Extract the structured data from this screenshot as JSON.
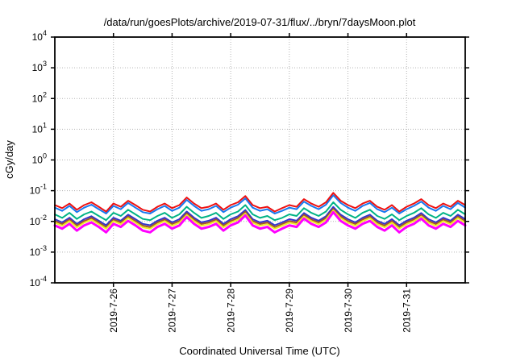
{
  "chart_data": {
    "type": "line",
    "title": "/data/run/goesPlots/archive/2019-07-31/flux/../bryn/7daysMoon.plot",
    "xlabel": "Coordinated Universal Time (UTC)",
    "ylabel": "cGy/day",
    "y_scale": "log10",
    "ylim": [
      0.0001,
      10000
    ],
    "ytick_exponents": [
      4,
      3,
      2,
      1,
      0,
      -1,
      -2,
      -3,
      -4
    ],
    "x_axis": {
      "start_hour": 0,
      "end_hour": 168,
      "step_hours": 3
    },
    "xticks": [
      {
        "hour": 24,
        "label": "2019-7-26"
      },
      {
        "hour": 48,
        "label": "2019-7-27"
      },
      {
        "hour": 72,
        "label": "2019-7-28"
      },
      {
        "hour": 96,
        "label": "2019-7-29"
      },
      {
        "hour": 120,
        "label": "2019-7-30"
      },
      {
        "hour": 144,
        "label": "2019-7-31"
      }
    ],
    "grid": {
      "horizontal": true,
      "vertical": true,
      "color": "#b3b3b3",
      "style": "dotted"
    },
    "axis_color": "#000000",
    "background": "#ffffff",
    "legend": "none",
    "series": [
      {
        "name": "navy-blue",
        "color": "#3333cc",
        "width": 2,
        "values": [
          0.0118,
          0.0093,
          0.0132,
          0.0083,
          0.0118,
          0.0148,
          0.0105,
          0.0075,
          0.0132,
          0.0105,
          0.0166,
          0.0118,
          0.0083,
          0.0075,
          0.0105,
          0.0132,
          0.0093,
          0.0118,
          0.021,
          0.0132,
          0.0093,
          0.0105,
          0.0132,
          0.0083,
          0.0118,
          0.0148,
          0.0235,
          0.0118,
          0.0093,
          0.0105,
          0.0075,
          0.0093,
          0.0118,
          0.0105,
          0.0187,
          0.0132,
          0.0105,
          0.0148,
          0.0296,
          0.0166,
          0.0118,
          0.0093,
          0.0132,
          0.0166,
          0.0105,
          0.0083,
          0.0118,
          0.0075,
          0.0105,
          0.0132,
          0.0187,
          0.0118,
          0.0093,
          0.0132,
          0.0105,
          0.0166,
          0.0118
        ]
      },
      {
        "name": "brown",
        "color": "#a0522d",
        "width": 2,
        "values": [
          0.0103,
          0.0082,
          0.0116,
          0.0073,
          0.0103,
          0.013,
          0.0092,
          0.0065,
          0.0116,
          0.0092,
          0.0145,
          0.0103,
          0.0073,
          0.0065,
          0.0092,
          0.0116,
          0.0082,
          0.0103,
          0.0184,
          0.0116,
          0.0082,
          0.0092,
          0.0116,
          0.0073,
          0.0103,
          0.013,
          0.0206,
          0.0103,
          0.0082,
          0.0092,
          0.0065,
          0.0082,
          0.0103,
          0.0092,
          0.0164,
          0.0116,
          0.0092,
          0.013,
          0.0259,
          0.0145,
          0.0103,
          0.0082,
          0.0116,
          0.0145,
          0.0092,
          0.0073,
          0.0103,
          0.0065,
          0.0092,
          0.0116,
          0.0164,
          0.0103,
          0.0082,
          0.0116,
          0.0092,
          0.0145,
          0.0103
        ]
      },
      {
        "name": "yellow",
        "color": "#eeee22",
        "width": 2,
        "values": [
          0.0091,
          0.0072,
          0.0102,
          0.0064,
          0.0091,
          0.0114,
          0.0081,
          0.0058,
          0.0102,
          0.0081,
          0.0128,
          0.0091,
          0.0064,
          0.0058,
          0.0081,
          0.0102,
          0.0072,
          0.0091,
          0.0162,
          0.0102,
          0.0072,
          0.0081,
          0.0102,
          0.0064,
          0.0091,
          0.0114,
          0.0181,
          0.0091,
          0.0072,
          0.0081,
          0.0058,
          0.0072,
          0.0091,
          0.0081,
          0.0144,
          0.0102,
          0.0081,
          0.0114,
          0.0228,
          0.0128,
          0.0091,
          0.0072,
          0.0102,
          0.0128,
          0.0081,
          0.0064,
          0.0091,
          0.0058,
          0.0081,
          0.0102,
          0.0144,
          0.0091,
          0.0072,
          0.0102,
          0.0081,
          0.0128,
          0.0091
        ]
      },
      {
        "name": "teal-green",
        "color": "#00b386",
        "width": 2,
        "values": [
          0.017,
          0.013,
          0.019,
          0.012,
          0.017,
          0.021,
          0.015,
          0.011,
          0.019,
          0.015,
          0.024,
          0.017,
          0.012,
          0.011,
          0.015,
          0.019,
          0.013,
          0.017,
          0.03,
          0.019,
          0.013,
          0.015,
          0.019,
          0.012,
          0.017,
          0.021,
          0.034,
          0.017,
          0.013,
          0.015,
          0.011,
          0.013,
          0.017,
          0.015,
          0.027,
          0.019,
          0.015,
          0.021,
          0.042,
          0.024,
          0.017,
          0.013,
          0.019,
          0.024,
          0.015,
          0.012,
          0.017,
          0.011,
          0.015,
          0.019,
          0.027,
          0.017,
          0.013,
          0.019,
          0.015,
          0.024,
          0.017
        ]
      },
      {
        "name": "light-blue",
        "color": "#1878f0",
        "width": 2,
        "values": [
          0.028,
          0.022,
          0.032,
          0.02,
          0.028,
          0.035,
          0.025,
          0.018,
          0.032,
          0.025,
          0.04,
          0.028,
          0.02,
          0.018,
          0.025,
          0.032,
          0.022,
          0.028,
          0.05,
          0.032,
          0.022,
          0.025,
          0.032,
          0.02,
          0.028,
          0.035,
          0.056,
          0.028,
          0.022,
          0.025,
          0.018,
          0.022,
          0.028,
          0.025,
          0.044,
          0.032,
          0.025,
          0.035,
          0.071,
          0.04,
          0.028,
          0.022,
          0.032,
          0.04,
          0.025,
          0.02,
          0.028,
          0.018,
          0.025,
          0.032,
          0.044,
          0.028,
          0.022,
          0.032,
          0.025,
          0.04,
          0.028
        ]
      },
      {
        "name": "red",
        "color": "#ee1111",
        "width": 2,
        "values": [
          0.034,
          0.027,
          0.038,
          0.024,
          0.034,
          0.042,
          0.03,
          0.021,
          0.038,
          0.03,
          0.047,
          0.034,
          0.024,
          0.021,
          0.03,
          0.038,
          0.027,
          0.034,
          0.06,
          0.038,
          0.027,
          0.03,
          0.038,
          0.024,
          0.034,
          0.042,
          0.067,
          0.034,
          0.027,
          0.03,
          0.021,
          0.027,
          0.034,
          0.03,
          0.053,
          0.038,
          0.03,
          0.042,
          0.085,
          0.047,
          0.034,
          0.027,
          0.038,
          0.047,
          0.03,
          0.024,
          0.034,
          0.021,
          0.03,
          0.038,
          0.053,
          0.034,
          0.027,
          0.038,
          0.03,
          0.047,
          0.034
        ]
      },
      {
        "name": "magenta",
        "color": "#ff00ff",
        "width": 3,
        "values": [
          0.0074,
          0.0058,
          0.0083,
          0.005,
          0.0074,
          0.0093,
          0.0066,
          0.0044,
          0.0083,
          0.0066,
          0.0104,
          0.0074,
          0.005,
          0.0044,
          0.0066,
          0.0083,
          0.0058,
          0.0074,
          0.0138,
          0.0083,
          0.0058,
          0.0066,
          0.0083,
          0.005,
          0.0074,
          0.0093,
          0.0156,
          0.0074,
          0.0058,
          0.0066,
          0.0044,
          0.0058,
          0.0074,
          0.0066,
          0.0123,
          0.0083,
          0.0066,
          0.0093,
          0.02,
          0.0104,
          0.0074,
          0.0058,
          0.0083,
          0.0104,
          0.0066,
          0.005,
          0.0074,
          0.0044,
          0.0066,
          0.0083,
          0.0123,
          0.0074,
          0.0058,
          0.0083,
          0.0066,
          0.0104,
          0.0074
        ]
      }
    ]
  }
}
